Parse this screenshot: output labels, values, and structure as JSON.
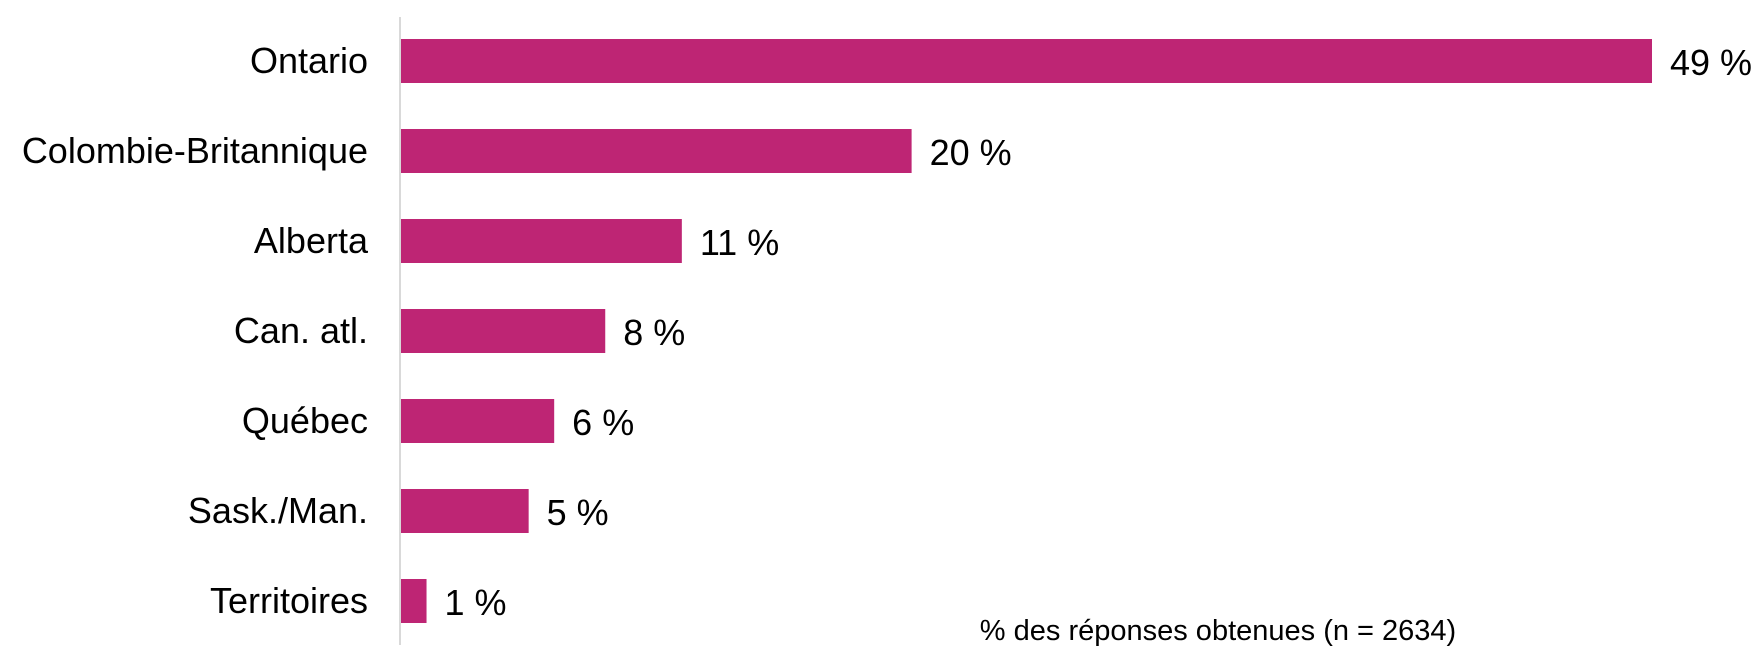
{
  "chart_data": {
    "type": "bar",
    "orientation": "horizontal",
    "categories": [
      "Ontario",
      "Colombie-Britannique",
      "Alberta",
      "Can. atl.",
      "Québec",
      "Sask./Man.",
      "Territoires"
    ],
    "values": [
      49,
      20,
      11,
      8,
      6,
      5,
      1
    ],
    "value_labels": [
      "49 %",
      "20 %",
      "11 %",
      "8 %",
      "6 %",
      "5 %",
      "1 %"
    ],
    "title": "",
    "xlabel": "",
    "ylabel": "",
    "xlim": [
      0,
      49
    ],
    "grid": false,
    "note": "% des réponses obtenues (n = 2634)",
    "colors": {
      "bar": "#BE2574",
      "axis": "#D9D9D9"
    }
  }
}
